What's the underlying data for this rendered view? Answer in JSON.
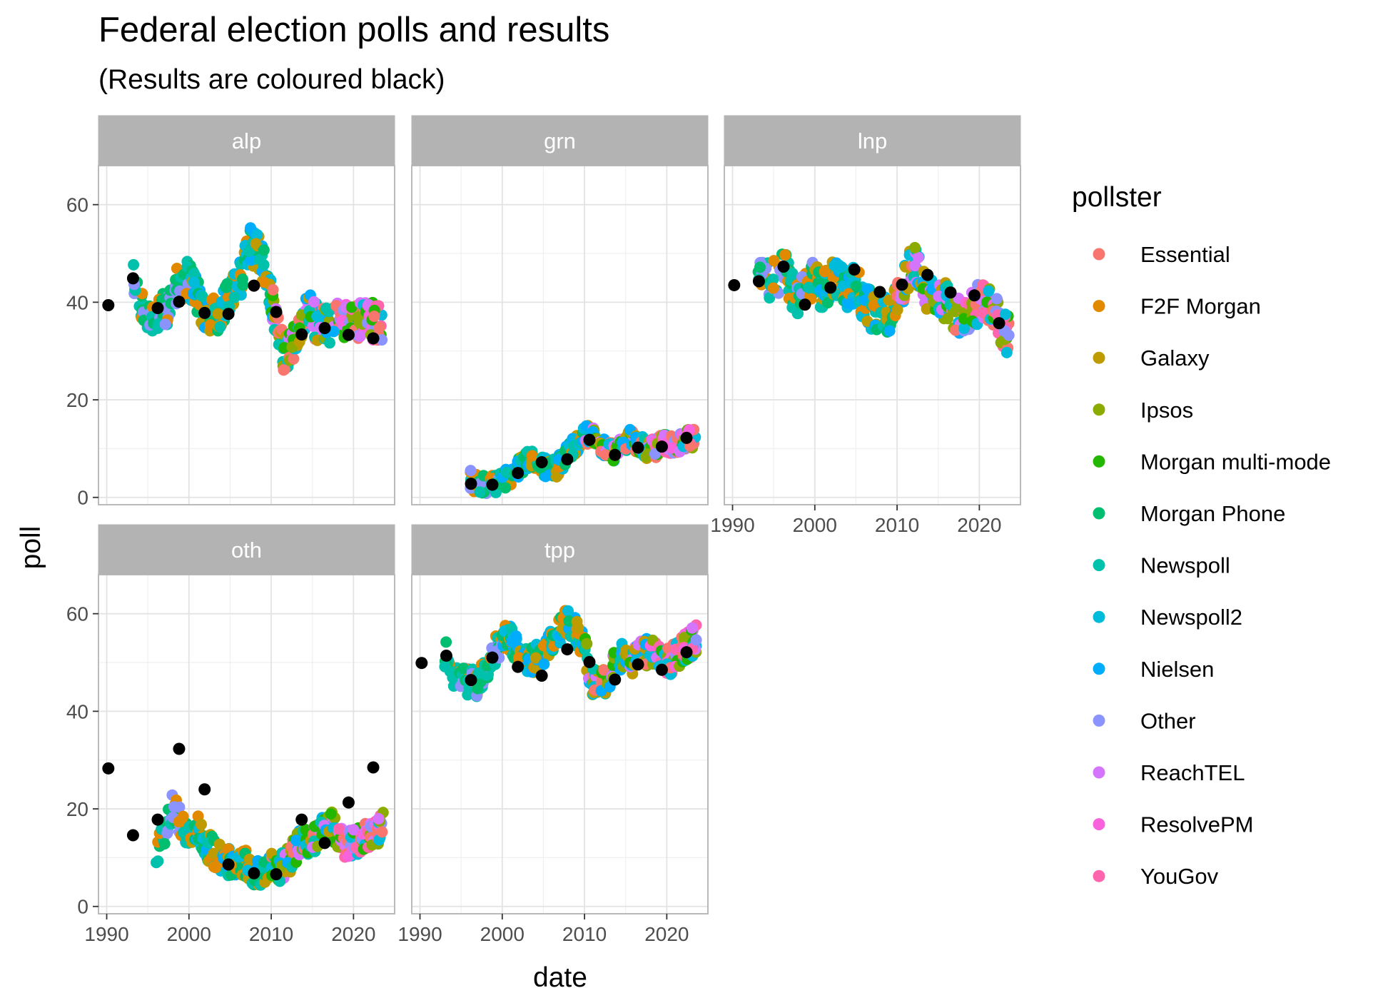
{
  "chart_data": {
    "type": "scatter",
    "title": "Federal election polls and results",
    "subtitle": "(Results are coloured black)",
    "xlabel": "date",
    "ylabel": "poll",
    "x_ticks": [
      1990,
      2000,
      2010,
      2020
    ],
    "y_ticks": [
      0,
      20,
      40,
      60
    ],
    "xlim": [
      1989,
      2025
    ],
    "ylim": [
      -1.5,
      68
    ],
    "grid": true,
    "legend": {
      "title": "pollster",
      "position": "right",
      "entries": [
        {
          "name": "Essential",
          "color": "#F8766D"
        },
        {
          "name": "F2F Morgan",
          "color": "#E18A00"
        },
        {
          "name": "Galaxy",
          "color": "#BE9C00"
        },
        {
          "name": "Ipsos",
          "color": "#8CAB00"
        },
        {
          "name": "Morgan multi-mode",
          "color": "#24B700"
        },
        {
          "name": "Morgan Phone",
          "color": "#00BE70"
        },
        {
          "name": "Newspoll",
          "color": "#00C1AB"
        },
        {
          "name": "Newspoll2",
          "color": "#00BBDA"
        },
        {
          "name": "Nielsen",
          "color": "#00ACFC"
        },
        {
          "name": "Other",
          "color": "#8B93FF"
        },
        {
          "name": "ReachTEL",
          "color": "#D575FE"
        },
        {
          "name": "ResolvePM",
          "color": "#F962DD"
        },
        {
          "name": "YouGov",
          "color": "#FF65AC"
        }
      ]
    },
    "facets": [
      {
        "name": "alp",
        "results": [
          [
            1990.2,
            39.4
          ],
          [
            1993.2,
            44.9
          ],
          [
            1996.2,
            38.8
          ],
          [
            1998.8,
            40.1
          ],
          [
            2001.9,
            37.8
          ],
          [
            2004.8,
            37.6
          ],
          [
            2007.9,
            43.4
          ],
          [
            2010.6,
            38.0
          ],
          [
            2013.7,
            33.4
          ],
          [
            2016.5,
            34.7
          ],
          [
            2019.4,
            33.3
          ],
          [
            2022.4,
            32.6
          ]
        ],
        "poll_trend": [
          [
            1993.0,
            46
          ],
          [
            1994.5,
            38
          ],
          [
            1996.3,
            37
          ],
          [
            1997.0,
            38
          ],
          [
            1998.0,
            42
          ],
          [
            1999.5,
            45
          ],
          [
            2000.5,
            44
          ],
          [
            2001.5,
            39
          ],
          [
            2002.5,
            38
          ],
          [
            2003.5,
            37
          ],
          [
            2004.5,
            41
          ],
          [
            2005.5,
            42
          ],
          [
            2006.5,
            46
          ],
          [
            2007.3,
            52
          ],
          [
            2008.0,
            51
          ],
          [
            2009.0,
            48
          ],
          [
            2010.0,
            42
          ],
          [
            2010.8,
            34
          ],
          [
            2011.5,
            30
          ],
          [
            2012.5,
            31
          ],
          [
            2013.3,
            34
          ],
          [
            2014.5,
            38
          ],
          [
            2015.5,
            36
          ],
          [
            2016.5,
            35
          ],
          [
            2017.5,
            36
          ],
          [
            2018.5,
            37
          ],
          [
            2019.5,
            35
          ],
          [
            2020.5,
            36
          ],
          [
            2021.5,
            38
          ],
          [
            2022.5,
            36
          ],
          [
            2023.5,
            36
          ]
        ],
        "poll_spread": 4
      },
      {
        "name": "grn",
        "results": [
          [
            1996.2,
            2.8
          ],
          [
            1998.8,
            2.6
          ],
          [
            2001.9,
            5.0
          ],
          [
            2004.8,
            7.2
          ],
          [
            2007.9,
            7.8
          ],
          [
            2010.6,
            11.8
          ],
          [
            2013.7,
            8.7
          ],
          [
            2016.5,
            10.2
          ],
          [
            2019.4,
            10.4
          ],
          [
            2022.4,
            12.2
          ]
        ],
        "poll_trend": [
          [
            1996.0,
            4
          ],
          [
            1997.0,
            2.5
          ],
          [
            1998.5,
            2.5
          ],
          [
            2000.0,
            3.5
          ],
          [
            2001.5,
            5
          ],
          [
            2002.5,
            7
          ],
          [
            2003.5,
            8
          ],
          [
            2004.5,
            7
          ],
          [
            2005.5,
            6
          ],
          [
            2006.5,
            6
          ],
          [
            2007.5,
            8
          ],
          [
            2008.5,
            10
          ],
          [
            2009.5,
            12
          ],
          [
            2010.5,
            13
          ],
          [
            2011.5,
            12
          ],
          [
            2012.5,
            10
          ],
          [
            2013.5,
            9
          ],
          [
            2014.5,
            11
          ],
          [
            2015.5,
            12
          ],
          [
            2016.5,
            11
          ],
          [
            2017.5,
            10
          ],
          [
            2018.5,
            10
          ],
          [
            2019.5,
            11
          ],
          [
            2020.5,
            11
          ],
          [
            2021.5,
            11
          ],
          [
            2022.5,
            12
          ],
          [
            2023.5,
            12
          ]
        ],
        "poll_spread": 2
      },
      {
        "name": "lnp",
        "results": [
          [
            1990.2,
            43.5
          ],
          [
            1993.2,
            44.3
          ],
          [
            1996.2,
            47.3
          ],
          [
            1998.8,
            39.5
          ],
          [
            2001.9,
            43.0
          ],
          [
            2004.8,
            46.7
          ],
          [
            2007.9,
            42.1
          ],
          [
            2010.6,
            43.6
          ],
          [
            2013.7,
            45.6
          ],
          [
            2016.5,
            42.0
          ],
          [
            2019.4,
            41.4
          ],
          [
            2022.4,
            35.7
          ]
        ],
        "poll_trend": [
          [
            1993.0,
            46
          ],
          [
            1994.5,
            44
          ],
          [
            1996.3,
            47
          ],
          [
            1997.0,
            43
          ],
          [
            1998.0,
            40
          ],
          [
            1999.0,
            43
          ],
          [
            2000.0,
            45
          ],
          [
            2001.0,
            42
          ],
          [
            2002.0,
            45
          ],
          [
            2003.0,
            44
          ],
          [
            2004.0,
            42
          ],
          [
            2005.0,
            44
          ],
          [
            2006.0,
            40
          ],
          [
            2007.0,
            38
          ],
          [
            2008.0,
            38
          ],
          [
            2009.0,
            37
          ],
          [
            2010.0,
            40
          ],
          [
            2011.0,
            45
          ],
          [
            2012.0,
            48
          ],
          [
            2013.0,
            45
          ],
          [
            2014.0,
            41
          ],
          [
            2015.0,
            40
          ],
          [
            2016.0,
            40
          ],
          [
            2017.0,
            38
          ],
          [
            2018.0,
            37
          ],
          [
            2019.0,
            38
          ],
          [
            2020.0,
            40
          ],
          [
            2021.0,
            39
          ],
          [
            2022.0,
            38
          ],
          [
            2023.0,
            34
          ],
          [
            2023.6,
            33
          ]
        ],
        "poll_spread": 4
      },
      {
        "name": "oth",
        "results": [
          [
            1990.2,
            28.3
          ],
          [
            1993.2,
            14.6
          ],
          [
            1996.2,
            17.8
          ],
          [
            1998.8,
            32.3
          ],
          [
            2001.9,
            24.0
          ],
          [
            2004.8,
            8.6
          ],
          [
            2007.9,
            6.8
          ],
          [
            2010.6,
            6.6
          ],
          [
            2013.7,
            17.8
          ],
          [
            2016.5,
            13.0
          ],
          [
            2019.4,
            21.3
          ],
          [
            2022.4,
            28.5
          ]
        ],
        "poll_trend": [
          [
            1996.0,
            10
          ],
          [
            1997.0,
            15
          ],
          [
            1998.0,
            21
          ],
          [
            1999.0,
            17
          ],
          [
            2000.0,
            14
          ],
          [
            2001.0,
            16
          ],
          [
            2002.0,
            13
          ],
          [
            2003.0,
            11
          ],
          [
            2004.0,
            10
          ],
          [
            2005.0,
            9
          ],
          [
            2006.0,
            9
          ],
          [
            2007.0,
            9
          ],
          [
            2008.0,
            7
          ],
          [
            2009.0,
            7
          ],
          [
            2010.0,
            8
          ],
          [
            2011.0,
            8
          ],
          [
            2012.0,
            9
          ],
          [
            2013.0,
            12
          ],
          [
            2014.0,
            14
          ],
          [
            2015.0,
            13
          ],
          [
            2016.0,
            15
          ],
          [
            2017.0,
            18
          ],
          [
            2018.0,
            15
          ],
          [
            2019.0,
            13
          ],
          [
            2020.0,
            13
          ],
          [
            2021.0,
            14
          ],
          [
            2022.0,
            15
          ],
          [
            2023.0,
            15
          ],
          [
            2023.6,
            17
          ]
        ],
        "poll_spread": 3
      },
      {
        "name": "tpp",
        "results": [
          [
            1990.2,
            49.9
          ],
          [
            1993.2,
            51.4
          ],
          [
            1996.2,
            46.4
          ],
          [
            1998.8,
            51.0
          ],
          [
            2001.9,
            49.1
          ],
          [
            2004.8,
            47.3
          ],
          [
            2007.9,
            52.7
          ],
          [
            2010.6,
            50.1
          ],
          [
            2013.7,
            46.5
          ],
          [
            2016.5,
            49.6
          ],
          [
            2019.4,
            48.5
          ],
          [
            2022.4,
            52.1
          ]
        ],
        "poll_trend": [
          [
            1993.0,
            52
          ],
          [
            1994.5,
            46
          ],
          [
            1996.3,
            46
          ],
          [
            1997.0,
            46
          ],
          [
            1998.0,
            49
          ],
          [
            1999.0,
            52
          ],
          [
            2000.0,
            55
          ],
          [
            2001.0,
            55
          ],
          [
            2002.0,
            52
          ],
          [
            2003.0,
            50
          ],
          [
            2004.0,
            51
          ],
          [
            2005.0,
            52
          ],
          [
            2006.0,
            54
          ],
          [
            2007.0,
            57
          ],
          [
            2008.0,
            58
          ],
          [
            2009.0,
            56
          ],
          [
            2010.0,
            53
          ],
          [
            2011.0,
            46
          ],
          [
            2012.0,
            45
          ],
          [
            2013.0,
            47
          ],
          [
            2014.0,
            51
          ],
          [
            2015.0,
            52
          ],
          [
            2016.0,
            50
          ],
          [
            2017.0,
            52
          ],
          [
            2018.0,
            52
          ],
          [
            2019.0,
            51
          ],
          [
            2020.0,
            50
          ],
          [
            2021.0,
            51
          ],
          [
            2022.0,
            53
          ],
          [
            2023.0,
            54
          ],
          [
            2023.6,
            55
          ]
        ],
        "poll_spread": 3
      }
    ]
  }
}
